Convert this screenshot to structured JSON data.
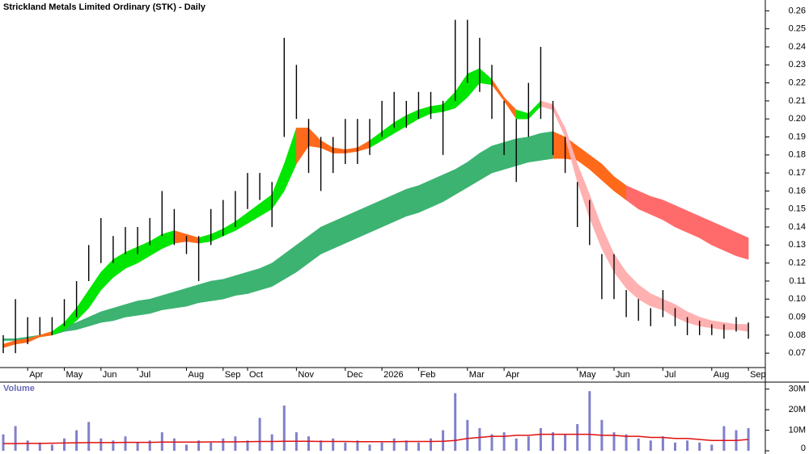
{
  "chart_data": [
    {
      "type": "ohlc",
      "title": "Strickland Metals Limited Ordinary (STK) - Daily",
      "categories": [
        null,
        null,
        "Apr",
        null,
        null,
        "May",
        null,
        null,
        "Jun",
        null,
        null,
        "Jul",
        null,
        null,
        null,
        "Aug",
        null,
        null,
        "Sep",
        null,
        "Oct",
        null,
        null,
        null,
        "Nov",
        null,
        null,
        null,
        "Dec",
        null,
        null,
        "2026",
        null,
        null,
        "Feb",
        null,
        null,
        null,
        "Mar",
        null,
        null,
        "Apr",
        null,
        null,
        null,
        null,
        null,
        "May",
        null,
        null,
        "Jun",
        null,
        null,
        null,
        "Jul",
        null,
        null,
        null,
        "Aug",
        null,
        null,
        "Sep"
      ],
      "high": [
        0.08,
        0.1,
        0.09,
        0.09,
        0.09,
        0.1,
        0.11,
        0.13,
        0.145,
        0.135,
        0.14,
        0.14,
        0.145,
        0.16,
        0.15,
        0.135,
        0.135,
        0.15,
        0.155,
        0.16,
        0.17,
        0.17,
        0.165,
        0.245,
        0.23,
        0.2,
        0.19,
        0.19,
        0.2,
        0.2,
        0.2,
        0.21,
        0.215,
        0.21,
        0.215,
        0.215,
        0.21,
        0.255,
        0.255,
        0.245,
        0.23,
        0.21,
        0.2,
        0.22,
        0.24,
        0.21,
        0.19,
        0.165,
        0.155,
        0.125,
        0.125,
        0.105,
        0.1,
        0.095,
        0.105,
        0.095,
        0.09,
        0.088,
        0.086,
        0.086,
        0.09,
        0.087
      ],
      "low": [
        0.07,
        0.07,
        0.075,
        0.08,
        0.08,
        0.085,
        0.09,
        0.11,
        0.12,
        0.12,
        0.125,
        0.125,
        0.13,
        0.135,
        0.13,
        0.125,
        0.11,
        0.13,
        0.135,
        0.14,
        0.15,
        0.155,
        0.14,
        0.19,
        0.2,
        0.17,
        0.16,
        0.17,
        0.175,
        0.175,
        0.18,
        0.19,
        0.195,
        0.195,
        0.2,
        0.2,
        0.18,
        0.21,
        0.22,
        0.215,
        0.2,
        0.18,
        0.165,
        0.19,
        0.2,
        0.18,
        0.17,
        0.14,
        0.13,
        0.1,
        0.1,
        0.09,
        0.088,
        0.085,
        0.09,
        0.085,
        0.08,
        0.08,
        0.08,
        0.078,
        0.082,
        0.078
      ],
      "bands": [
        {
          "upper": [
            0.078,
            0.078,
            0.079,
            0.08,
            0.082,
            0.085,
            0.087,
            0.09,
            0.093,
            0.095,
            0.097,
            0.099,
            0.1,
            0.102,
            0.104,
            0.106,
            0.108,
            0.11,
            0.111,
            0.113,
            0.115,
            0.117,
            0.12,
            0.125,
            0.13,
            0.135,
            0.14,
            0.143,
            0.146,
            0.149,
            0.152,
            0.155,
            0.158,
            0.161,
            0.163,
            0.166,
            0.169,
            0.172,
            0.176,
            0.181,
            0.185,
            0.187,
            0.189,
            0.19,
            0.192,
            0.193,
            0.19,
            0.185,
            0.18,
            0.175,
            0.168,
            0.163,
            0.16,
            0.157,
            0.155,
            0.152,
            0.149,
            0.146,
            0.143,
            0.14,
            0.137,
            0.134
          ],
          "lower": [
            0.077,
            0.077,
            0.077,
            0.079,
            0.08,
            0.082,
            0.083,
            0.085,
            0.087,
            0.088,
            0.09,
            0.091,
            0.092,
            0.094,
            0.095,
            0.096,
            0.098,
            0.099,
            0.1,
            0.102,
            0.103,
            0.105,
            0.107,
            0.111,
            0.115,
            0.12,
            0.125,
            0.128,
            0.131,
            0.134,
            0.137,
            0.14,
            0.143,
            0.146,
            0.148,
            0.151,
            0.154,
            0.158,
            0.162,
            0.166,
            0.17,
            0.172,
            0.174,
            0.176,
            0.177,
            0.178,
            0.178,
            0.177,
            0.172,
            0.166,
            0.16,
            0.155,
            0.15,
            0.147,
            0.144,
            0.14,
            0.137,
            0.134,
            0.13,
            0.127,
            0.124,
            0.122
          ],
          "colors": [
            "#3cb371",
            "#3cb371",
            "#3cb371",
            "#3cb371",
            "#3cb371",
            "#3cb371",
            "#3cb371",
            "#3cb371",
            "#3cb371",
            "#3cb371",
            "#3cb371",
            "#3cb371",
            "#3cb371",
            "#3cb371",
            "#3cb371",
            "#3cb371",
            "#3cb371",
            "#3cb371",
            "#3cb371",
            "#3cb371",
            "#3cb371",
            "#3cb371",
            "#3cb371",
            "#3cb371",
            "#3cb371",
            "#3cb371",
            "#3cb371",
            "#3cb371",
            "#3cb371",
            "#3cb371",
            "#3cb371",
            "#3cb371",
            "#3cb371",
            "#3cb371",
            "#3cb371",
            "#3cb371",
            "#3cb371",
            "#3cb371",
            "#3cb371",
            "#3cb371",
            "#3cb371",
            "#3cb371",
            "#3cb371",
            "#3cb371",
            "#3cb371",
            "#ff6a1a",
            "#ff6a1a",
            "#ff6a1a",
            "#ff6a1a",
            "#ff6a1a",
            "#ff6a1a",
            "#ff6b6b",
            "#ff6b6b",
            "#ff6b6b",
            "#ff6b6b",
            "#ff6b6b",
            "#ff6b6b",
            "#ff6b6b",
            "#ff6b6b",
            "#ff6b6b",
            "#ff6b6b",
            "#ff6b6b"
          ]
        },
        {
          "upper": [
            0.075,
            0.077,
            0.078,
            0.08,
            0.082,
            0.087,
            0.095,
            0.105,
            0.115,
            0.122,
            0.126,
            0.129,
            0.132,
            0.136,
            0.138,
            0.136,
            0.134,
            0.136,
            0.139,
            0.143,
            0.148,
            0.153,
            0.158,
            0.175,
            0.195,
            0.195,
            0.188,
            0.184,
            0.183,
            0.184,
            0.188,
            0.193,
            0.198,
            0.202,
            0.205,
            0.207,
            0.208,
            0.215,
            0.225,
            0.228,
            0.222,
            0.212,
            0.205,
            0.203,
            0.21,
            0.208,
            0.195,
            0.175,
            0.158,
            0.14,
            0.125,
            0.115,
            0.108,
            0.103,
            0.1,
            0.097,
            0.093,
            0.09,
            0.088,
            0.087,
            0.086,
            0.086
          ],
          "lower": [
            0.073,
            0.075,
            0.076,
            0.079,
            0.08,
            0.083,
            0.088,
            0.095,
            0.105,
            0.112,
            0.117,
            0.12,
            0.124,
            0.128,
            0.131,
            0.132,
            0.131,
            0.132,
            0.135,
            0.138,
            0.142,
            0.146,
            0.15,
            0.16,
            0.175,
            0.185,
            0.184,
            0.181,
            0.181,
            0.182,
            0.184,
            0.188,
            0.192,
            0.196,
            0.2,
            0.203,
            0.204,
            0.206,
            0.212,
            0.22,
            0.219,
            0.21,
            0.2,
            0.2,
            0.207,
            0.205,
            0.19,
            0.165,
            0.145,
            0.128,
            0.115,
            0.106,
            0.1,
            0.096,
            0.094,
            0.09,
            0.087,
            0.085,
            0.084,
            0.083,
            0.083,
            0.082
          ],
          "colors": [
            "#ff6a1a",
            "#ff6a1a",
            "#ff6a1a",
            "#ff6a1a",
            "#00e600",
            "#00e600",
            "#00e600",
            "#00e600",
            "#00e600",
            "#00e600",
            "#00e600",
            "#00e600",
            "#00e600",
            "#00e600",
            "#ff6a1a",
            "#ff6a1a",
            "#00e600",
            "#00e600",
            "#00e600",
            "#00e600",
            "#00e600",
            "#00e600",
            "#00e600",
            "#00e600",
            "#ff6a1a",
            "#ff6a1a",
            "#ff6a1a",
            "#ff6a1a",
            "#ff6a1a",
            "#ff6a1a",
            "#00e600",
            "#00e600",
            "#00e600",
            "#00e600",
            "#00e600",
            "#00e600",
            "#00e600",
            "#00e600",
            "#00e600",
            "#00e600",
            "#ff6a1a",
            "#ff6a1a",
            "#00e600",
            "#00e600",
            "#ffb0b0",
            "#ffb0b0",
            "#ffb0b0",
            "#ffb0b0",
            "#ffb0b0",
            "#ffb0b0",
            "#ffb0b0",
            "#ffb0b0",
            "#ffb0b0",
            "#ffb0b0",
            "#ffb0b0",
            "#ffb0b0",
            "#ffb0b0",
            "#ffb0b0",
            "#ffb0b0",
            "#ffb0b0",
            "#ffb0b0",
            "#ffb0b0"
          ]
        }
      ],
      "ylim": [
        0.062,
        0.266
      ],
      "yticks": [
        0.07,
        0.08,
        0.09,
        {
          "value": 0.1,
          "label": "0.10"
        },
        0.11,
        0.12,
        0.13,
        0.14,
        0.15,
        0.16,
        0.17,
        0.18,
        0.19,
        {
          "value": 0.2,
          "label": "0.20"
        },
        0.21,
        0.22,
        0.23,
        0.24,
        0.25,
        0.26
      ]
    },
    {
      "type": "bar",
      "title": "Volume",
      "color": "#8080cc",
      "values": [
        8000000,
        12000000,
        5000000,
        4000000,
        3000000,
        6000000,
        10000000,
        14000000,
        6000000,
        5000000,
        7000000,
        4000000,
        5000000,
        9000000,
        6000000,
        3000000,
        5000000,
        4000000,
        6000000,
        7000000,
        5000000,
        16000000,
        8000000,
        22000000,
        9000000,
        7000000,
        5000000,
        6000000,
        4000000,
        5000000,
        3000000,
        4000000,
        6000000,
        5000000,
        4000000,
        6000000,
        10000000,
        28000000,
        15000000,
        11000000,
        8000000,
        9000000,
        6000000,
        7000000,
        11000000,
        9000000,
        8000000,
        13000000,
        29000000,
        15000000,
        9000000,
        8000000,
        6000000,
        5000000,
        7000000,
        4000000,
        5000000,
        4000000,
        3000000,
        12000000,
        10000000,
        11000000
      ],
      "average": {
        "color": "#e01010",
        "values": [
          3500000,
          3500000,
          3600000,
          3600000,
          3700000,
          3800000,
          3900000,
          4000000,
          4000000,
          4000000,
          4100000,
          4100000,
          4100000,
          4200000,
          4200000,
          4200000,
          4200000,
          4300000,
          4300000,
          4300000,
          4400000,
          4500000,
          4500000,
          4600000,
          4600000,
          4600000,
          4500000,
          4500000,
          4500000,
          4400000,
          4400000,
          4400000,
          4400000,
          4500000,
          4500000,
          4500000,
          4600000,
          5000000,
          6000000,
          6500000,
          7000000,
          7000000,
          7500000,
          7500000,
          8000000,
          8000000,
          8000000,
          8000000,
          8000000,
          7500000,
          7500000,
          7000000,
          7000000,
          6500000,
          6500000,
          6000000,
          6000000,
          5500000,
          5000000,
          5000000,
          5000000,
          5500000
        ]
      },
      "ylim": [
        0,
        33000000
      ],
      "yticks": [
        {
          "value": 0,
          "label": "0"
        },
        {
          "value": 10000000,
          "label": "10M"
        },
        {
          "value": 20000000,
          "label": "20M"
        },
        {
          "value": 30000000,
          "label": "30M"
        }
      ]
    }
  ]
}
